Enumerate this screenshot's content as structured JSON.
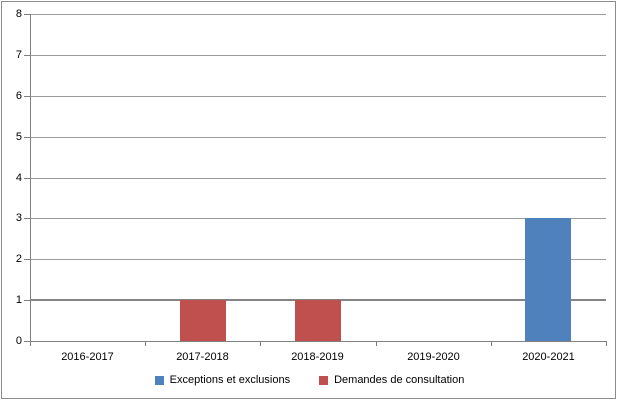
{
  "chart": {
    "background": "#FFFFFF",
    "border_color": "#8C8C8C"
  },
  "chart_data": {
    "type": "bar",
    "title": "",
    "xlabel": "",
    "ylabel": "",
    "categories": [
      "2016-2017",
      "2017-2018",
      "2018-2019",
      "2019-2020",
      "2020-2021"
    ],
    "series": [
      {
        "name": "Exceptions et exclusions",
        "color": "#4F81BD",
        "values": [
          0,
          0,
          0,
          0,
          3
        ]
      },
      {
        "name": "Demandes de consultation",
        "color": "#C0504D",
        "values": [
          0,
          1,
          1,
          0,
          0
        ]
      }
    ],
    "ylim": [
      0,
      8
    ],
    "ytick_step": 1,
    "yticks": [
      0,
      1,
      2,
      3,
      4,
      5,
      6,
      7,
      8
    ],
    "grid": "horizontal",
    "gridline_color": "#9B9B9B",
    "emphasized_gridline": {
      "value": 1,
      "color": "#858585"
    },
    "axis_color": "#808080",
    "legend_position": "bottom",
    "bar_layout": "overlapped-centered"
  }
}
